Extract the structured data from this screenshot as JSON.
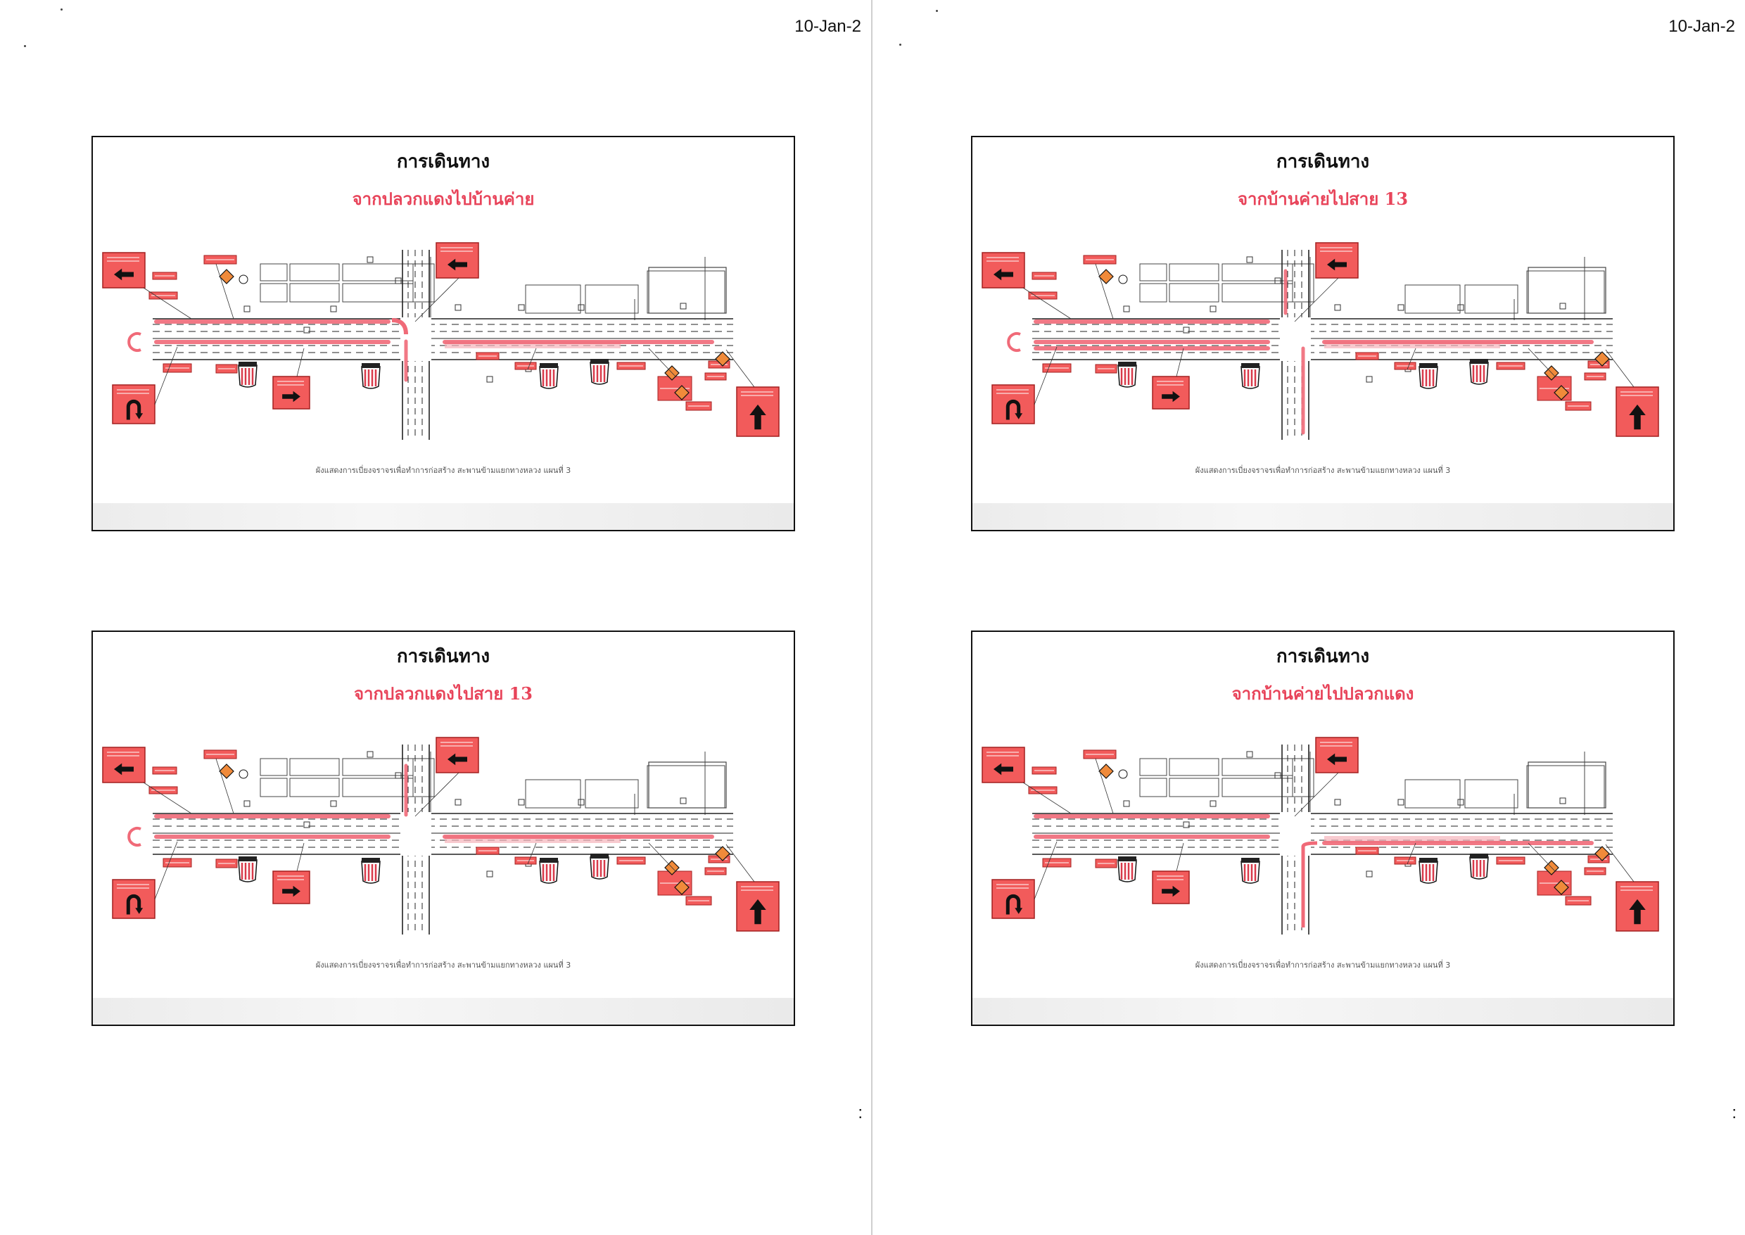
{
  "pages": [
    {
      "date": "10-Jan-2",
      "page_number": ":"
    },
    {
      "date": "10-Jan-2",
      "page_number": ":"
    }
  ],
  "slides": [
    {
      "title": "การเดินทาง",
      "subtitle": "จากปลวกแดงไปบ้านค่าย",
      "route": "pluak-to-ban",
      "caption": "ผังแสดงการเบี่ยงจราจรเพื่อทำการก่อสร้าง สะพานข้ามแยกทางหลวง แผนที่ 3"
    },
    {
      "title": "การเดินทาง",
      "subtitle": "จากบ้านค่ายไปสาย 13",
      "route": "ban-to-13",
      "caption": "ผังแสดงการเบี่ยงจราจรเพื่อทำการก่อสร้าง สะพานข้ามแยกทางหลวง แผนที่ 3"
    },
    {
      "title": "การเดินทาง",
      "subtitle": "จากปลวกแดงไปสาย 13",
      "route": "pluak-to-13",
      "caption": "ผังแสดงการเบี่ยงจราจรเพื่อทำการก่อสร้าง สะพานข้ามแยกทางหลวง แผนที่ 3"
    },
    {
      "title": "การเดินทาง",
      "subtitle": "จากบ้านค่ายไปปลวกแดง",
      "route": "ban-to-pluak",
      "caption": "ผังแสดงการเบี่ยงจราจรเพื่อทำการก่อสร้าง สะพานข้ามแยกทางหลวง แผนที่ 3"
    }
  ],
  "colors": {
    "route": "#f06a78",
    "sign": "#f25b5b",
    "sign_dark": "#a32020",
    "road": "#222222"
  },
  "icons": {
    "arrow_left": "arrow-left-icon",
    "arrow_right": "arrow-right-icon",
    "arrow_up": "arrow-up-icon",
    "u_turn": "u-turn-icon",
    "diamond": "warning-diamond-icon",
    "barrier": "barrier-icon"
  }
}
